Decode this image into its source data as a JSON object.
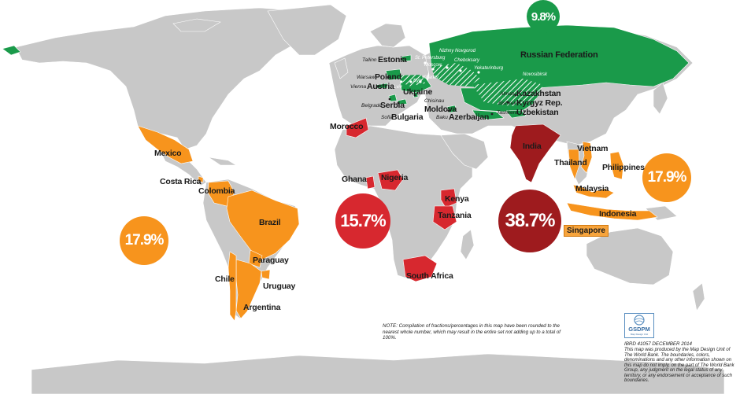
{
  "colors": {
    "ocean": "#ffffff",
    "land": "#c8c8c8",
    "europe_central_asia": "#1a9a4a",
    "latin_america": "#f7941d",
    "east_asia_pacific": "#f7941d",
    "africa": "#d7282f",
    "south_asia": "#9e1b1e"
  },
  "bubbles": {
    "eca": "9.8%",
    "lac": "17.9%",
    "eap": "17.9%",
    "ssa": "15.7%",
    "sa": "38.7%"
  },
  "countries": {
    "russia": "Russian Federation",
    "estonia": "Estonia",
    "poland": "Poland",
    "austria": "Austria",
    "ukraine": "Ukraine",
    "serbia": "Serbia",
    "bulgaria": "Bulgaria",
    "moldova": "Moldova",
    "azerbaijan": "Azerbaijan",
    "kazakhstan": "Kazakhstan",
    "kyrgyz": "Kyrgyz Rep.",
    "uzbekistan": "Uzbekistan",
    "morocco": "Morocco",
    "ghana": "Ghana",
    "nigeria": "Nigeria",
    "kenya": "Kenya",
    "tanzania": "Tanzania",
    "south_africa": "South Africa",
    "india": "India",
    "vietnam": "Vietnam",
    "thailand": "Thailand",
    "philippines": "Philippines",
    "malaysia": "Malaysia",
    "indonesia": "Indonesia",
    "singapore": "Singapore",
    "mexico": "Mexico",
    "costa_rica": "Costa Rica",
    "colombia": "Colombia",
    "brazil": "Brazil",
    "paraguay": "Paraguay",
    "chile": "Chile",
    "uruguay": "Uruguay",
    "argentina": "Argentina"
  },
  "cities": {
    "tallinn": "Tallinn",
    "warsaw": "Warsaw",
    "vienna": "Vienna",
    "belgrade": "Belgrade",
    "sofia": "Sofia",
    "chisinau": "Chisinau",
    "baku": "Baku",
    "almaty": "Almaty",
    "bishkek": "Bishkek",
    "tashkent": "Tashkent",
    "st_petersburg": "St. Petersburg",
    "moscow": "Moscow",
    "nizhny": "Nizhny Novgorod",
    "cheboksary": "Cheboksary",
    "yekaterinburg": "Yekaterinburg",
    "novosibirsk": "Novosibirsk",
    "kyiv": "Kyiv",
    "kharkiv": "Kharkiv",
    "lviv": "Lviv"
  },
  "note": "NOTE: Compilation of fractions/percentages in this map have been rounded to the nearest whole number, which may result in the entire set not adding up to a total of 100%.",
  "logo": {
    "title": "GSDPM",
    "subtitle": "Map Design Unit"
  },
  "credit": {
    "id_line": "IBRD 41057   DECEMBER 2014",
    "text": "This map was produced by the Map Design Unit of The World Bank. The boundaries, colors, denominations and any other information shown on this map do not imply, on the part of The World Bank Group, any judgment on the legal status of any territory, or any endorsement or acceptance of such boundaries."
  }
}
